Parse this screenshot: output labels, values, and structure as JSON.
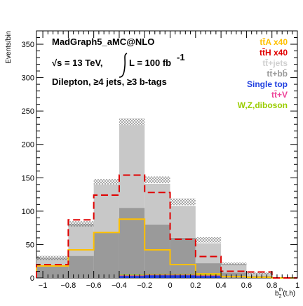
{
  "chart_data": {
    "type": "bar",
    "stacked": true,
    "xlabel": "b_2^{th}(t,h)",
    "ylabel": "Events/bin",
    "xlim": [
      -1.05,
      1.0
    ],
    "ylim": [
      0,
      370
    ],
    "x_ticks": [
      "−1",
      "−0.8",
      "−0.6",
      "−0.4",
      "−0.2",
      "0",
      "0.2",
      "0.4",
      "0.6",
      "0.8",
      "1"
    ],
    "x_tick_values": [
      -1,
      -0.8,
      -0.6,
      -0.4,
      -0.2,
      0,
      0.2,
      0.4,
      0.6,
      0.8,
      1
    ],
    "y_ticks": [
      "0",
      "50",
      "100",
      "150",
      "200",
      "250",
      "300",
      "350"
    ],
    "y_tick_values": [
      0,
      50,
      100,
      150,
      200,
      250,
      300,
      350
    ],
    "bin_edges": [
      -1.05,
      -0.8,
      -0.6,
      -0.4,
      -0.2,
      0.0,
      0.2,
      0.4,
      0.6,
      0.8,
      1.0
    ],
    "info": {
      "generator": "MadGraph5_aMC@NLO",
      "energy": "√s = 13 TeV,",
      "lumi": "L = 100 fb",
      "lumi_exp": "-1",
      "selection": "Dilepton, ≥4 jets, ≥3 b-tags"
    },
    "stack": [
      {
        "name": "Single top",
        "color": "#1f3fe0",
        "values": [
          0,
          0,
          0,
          3,
          4,
          4,
          3,
          0,
          0,
          0
        ]
      },
      {
        "name": "W,Z,diboson",
        "color": "#9acd00",
        "values": [
          0,
          0,
          0,
          1,
          1,
          1,
          1,
          0,
          0,
          0
        ]
      },
      {
        "name": "tt+V",
        "color": "#ee4499",
        "values": [
          0,
          0,
          0,
          1,
          1,
          1,
          1,
          0,
          0,
          0
        ]
      },
      {
        "name": "tt+bb",
        "color": "#9a9a9a",
        "values": [
          17,
          33,
          68,
          105,
          80,
          60,
          22,
          8,
          3,
          0
        ]
      },
      {
        "name": "tt+jets",
        "color": "#c8c8c8",
        "values": [
          13,
          48,
          72,
          124,
          61,
          48,
          30,
          13,
          4,
          0
        ]
      }
    ],
    "stack_totals": [
      30,
      81,
      144,
      234,
      147,
      114,
      57,
      21,
      7,
      0
    ],
    "uncertainty_half": [
      3,
      4,
      4,
      5,
      5,
      5,
      4,
      2,
      1,
      0
    ],
    "signal_lines": [
      {
        "name": "ttA x40",
        "color": "#ffc000",
        "style": "solid",
        "values": [
          18,
          42,
          68,
          88,
          42,
          20,
          6,
          2,
          1,
          0
        ]
      },
      {
        "name": "ttH x40",
        "color": "#e00000",
        "style": "dashed",
        "values": [
          20,
          87,
          124,
          154,
          128,
          58,
          32,
          10,
          9,
          0
        ]
      }
    ],
    "legend": {
      "position": "top-right",
      "entries": [
        {
          "label": "tt̄A x40",
          "color": "#ffc000"
        },
        {
          "label": "tt̄H x40",
          "color": "#e00000"
        },
        {
          "label": "tt̄+jets",
          "color": "#d0d0d0"
        },
        {
          "label": "tt̄+bb̄",
          "color": "#9a9a9a"
        },
        {
          "label": "Single top",
          "color": "#1f3fe0"
        },
        {
          "label": "tt̄+V",
          "color": "#ee4499"
        },
        {
          "label": "W,Z,diboson",
          "color": "#9acd00"
        }
      ]
    }
  }
}
